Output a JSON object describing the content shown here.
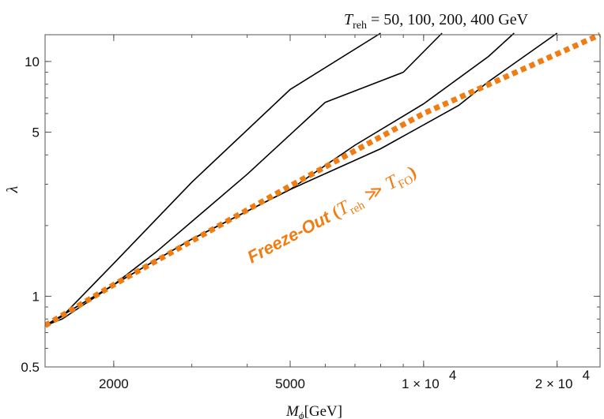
{
  "chart_data": {
    "type": "line",
    "x_scale": "log",
    "y_scale": "log",
    "xlim": [
      1400,
      25000
    ],
    "ylim": [
      0.5,
      13
    ],
    "grid": false,
    "x_ticks": [
      {
        "value": 2000,
        "label": "2000"
      },
      {
        "value": 5000,
        "label": "5000"
      },
      {
        "value": 10000,
        "label": "1 × 10"
      },
      {
        "value": 20000,
        "label": "2 × 10"
      }
    ],
    "x_tick_exponent": "4",
    "y_ticks": [
      {
        "value": 0.5,
        "label": "0.5"
      },
      {
        "value": 1,
        "label": "1"
      },
      {
        "value": 5,
        "label": "5"
      },
      {
        "value": 10,
        "label": "10"
      }
    ],
    "xlabel_main": "M",
    "xlabel_sub": "ϕ",
    "xlabel_units": "[GeV]",
    "ylabel": "λ",
    "top_annotation": {
      "symbol": "T",
      "subscript": "reh",
      "text": " = 50,  100,  200, 400  GeV"
    },
    "curve_annotation": {
      "text": "Freeze-Out ",
      "open": "(",
      "symbol": "T",
      "subscript": "reh",
      "relation": " ≫ ",
      "symbol2": "T",
      "subscript2": "FO",
      "close": ")"
    },
    "series": [
      {
        "color": "#000000",
        "dash": "solid",
        "x": [
          1400,
          1530,
          2000,
          3000,
          5000,
          8000
        ],
        "y": [
          0.75,
          0.82,
          1.38,
          3.06,
          7.6,
          13.2
        ]
      },
      {
        "color": "#000000",
        "dash": "solid",
        "x": [
          1400,
          1530,
          2000,
          2500,
          4000,
          6000,
          9000,
          11000
        ],
        "y": [
          0.75,
          0.8,
          1.12,
          1.55,
          3.31,
          6.7,
          9.0,
          13.2
        ]
      },
      {
        "color": "#000000",
        "dash": "solid",
        "x": [
          1400,
          2000,
          3000,
          5000,
          7000,
          10000,
          14000,
          16000
        ],
        "y": [
          0.75,
          1.12,
          1.75,
          2.85,
          4.4,
          6.6,
          10.5,
          13.2
        ]
      },
      {
        "color": "#000000",
        "dash": "solid",
        "x": [
          1400,
          2000,
          3000,
          5000,
          8000,
          12000,
          14000,
          20000
        ],
        "y": [
          0.75,
          1.12,
          1.75,
          2.85,
          4.25,
          6.5,
          8.2,
          13.2
        ]
      },
      {
        "color": "#f07d12",
        "dash": "dotted",
        "x": [
          1400,
          2000,
          5000,
          10000,
          25000
        ],
        "y": [
          0.75,
          1.12,
          2.95,
          6.0,
          13.0
        ]
      }
    ]
  }
}
